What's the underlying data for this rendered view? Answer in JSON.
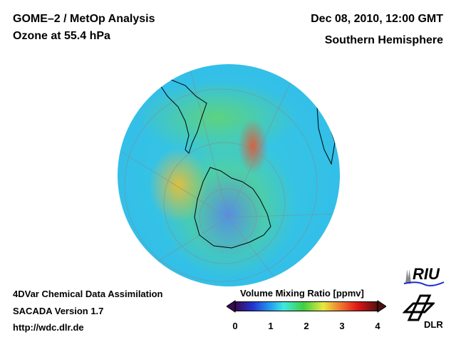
{
  "header": {
    "title": "GOME–2 / MetOp Analysis",
    "subtitle": "Ozone at 55.4 hPa",
    "datetime": "Dec 08, 2010, 12:00 GMT",
    "region": "Southern Hemisphere"
  },
  "footer": {
    "line1": "4DVar Chemical Data Assimilation",
    "line2": "SACADA Version 1.7",
    "url": "http://wdc.dlr.de"
  },
  "colorbar": {
    "label": "Volume Mixing Ratio [ppmv]",
    "ticks": [
      "0",
      "1",
      "2",
      "3",
      "4"
    ],
    "range": [
      0,
      4
    ]
  },
  "logos": {
    "riu": "RIU",
    "dlr": "DLR"
  }
}
